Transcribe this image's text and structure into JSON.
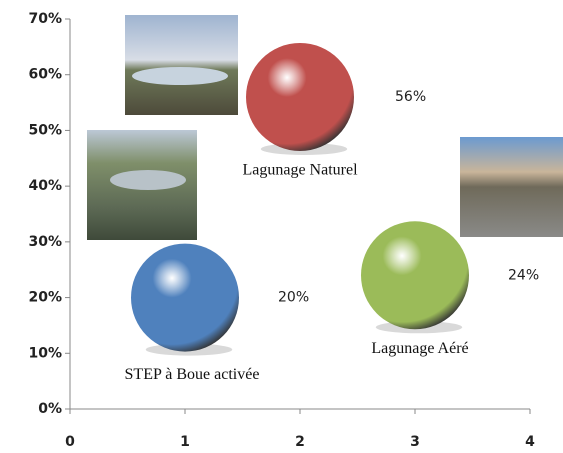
{
  "chart_data": {
    "type": "bubble",
    "xlim": [
      0,
      4
    ],
    "xticks": [
      0,
      1,
      2,
      3,
      4
    ],
    "ylim": [
      0,
      70
    ],
    "yticks": [
      {
        "value": 0,
        "label": "0%"
      },
      {
        "value": 10,
        "label": "10%"
      },
      {
        "value": 20,
        "label": "20%"
      },
      {
        "value": 30,
        "label": "30%"
      },
      {
        "value": 40,
        "label": "40%"
      },
      {
        "value": 50,
        "label": "50%"
      },
      {
        "value": 60,
        "label": "60%"
      },
      {
        "value": 70,
        "label": "70%"
      }
    ],
    "series": [
      {
        "name": "STEP à Boue activée",
        "color": "#4f81bd",
        "x": [
          1
        ],
        "values": [
          20
        ],
        "value_labels": [
          "20%"
        ]
      },
      {
        "name": "Lagunage Naturel",
        "color": "#c0504d",
        "x": [
          2
        ],
        "values": [
          56
        ],
        "value_labels": [
          "56%"
        ]
      },
      {
        "name": "Lagunage Aéré",
        "color": "#9bbb59",
        "x": [
          3
        ],
        "values": [
          24
        ],
        "value_labels": [
          "24%"
        ]
      }
    ]
  }
}
